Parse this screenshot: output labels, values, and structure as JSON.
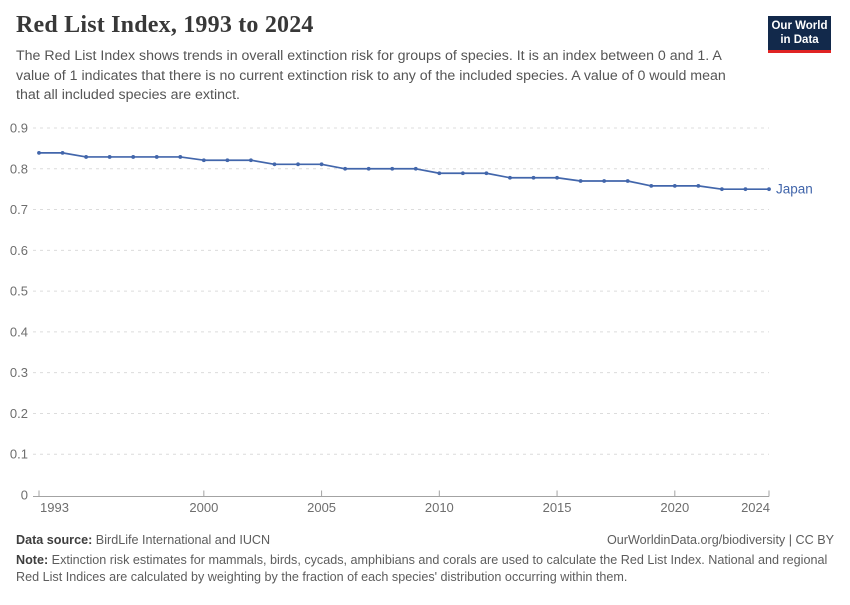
{
  "header": {
    "title": "Red List Index, 1993 to 2024",
    "subtitle": "The Red List Index shows trends in overall extinction risk for groups of species. It is an index between 0 and 1. A value of 1 indicates that there is no current extinction risk to any of the included species. A value of 0 would mean that all included species are extinct.",
    "logo_line1": "Our World",
    "logo_line2": "in Data"
  },
  "chart_data": {
    "type": "line",
    "title": "Red List Index, 1993 to 2024",
    "xlabel": "",
    "ylabel": "",
    "xlim": [
      1993,
      2024
    ],
    "ylim": [
      0,
      0.9
    ],
    "x_ticks": [
      1993,
      2000,
      2005,
      2010,
      2015,
      2020,
      2024
    ],
    "y_ticks": [
      0,
      0.1,
      0.2,
      0.3,
      0.4,
      0.5,
      0.6,
      0.7,
      0.8,
      0.9
    ],
    "grid": "horizontal-dashed",
    "legend_position": "end-of-line-label",
    "series": [
      {
        "name": "Japan",
        "color": "#4266ab",
        "x": [
          1993,
          1994,
          1995,
          1996,
          1997,
          1998,
          1999,
          2000,
          2001,
          2002,
          2003,
          2004,
          2005,
          2006,
          2007,
          2008,
          2009,
          2010,
          2011,
          2012,
          2013,
          2014,
          2015,
          2016,
          2017,
          2018,
          2019,
          2020,
          2021,
          2022,
          2023,
          2024
        ],
        "values": [
          0.839,
          0.839,
          0.829,
          0.829,
          0.829,
          0.829,
          0.829,
          0.821,
          0.821,
          0.821,
          0.811,
          0.811,
          0.811,
          0.8,
          0.8,
          0.8,
          0.8,
          0.789,
          0.789,
          0.789,
          0.778,
          0.778,
          0.778,
          0.77,
          0.77,
          0.77,
          0.758,
          0.758,
          0.758,
          0.75,
          0.75,
          0.75
        ]
      }
    ]
  },
  "footer": {
    "datasource_label": "Data source:",
    "datasource_value": " BirdLife International and IUCN",
    "attribution": "OurWorldinData.org/biodiversity | CC BY",
    "note_label": "Note:",
    "note_value": " Extinction risk estimates for mammals, birds, cycads, amphibians and corals are used to calculate the Red List Index. National and regional Red List Indices are calculated by weighting by the fraction of each species' distribution occurring within them."
  },
  "colors": {
    "series_blue": "#4266ab",
    "title_text": "#383838",
    "subtitle_text": "#555555",
    "tick_label": "#6e6e6e",
    "gridline": "#dcdcdc",
    "axis_line": "#a3a3a3",
    "logo_bg": "#12294b",
    "logo_red": "#e02323"
  }
}
